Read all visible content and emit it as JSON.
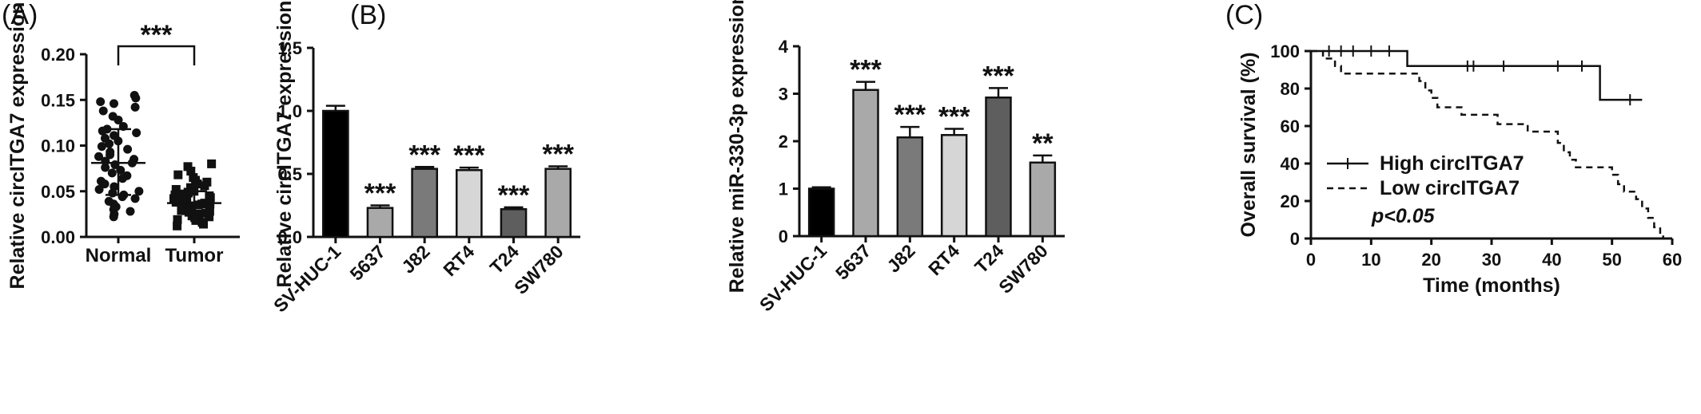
{
  "panels": {
    "a": "(A)",
    "b": "(B)",
    "c": "(C)"
  },
  "chart_data": [
    {
      "type": "scatter",
      "ylabel": "Relative circITGA7 expression",
      "ylim": [
        0,
        0.2
      ],
      "yticks": [
        "0.00",
        "0.05",
        "0.10",
        "0.15",
        "0.20"
      ],
      "categories": [
        "Normal",
        "Tumor"
      ],
      "significance": "***",
      "series": [
        {
          "name": "Normal",
          "mean": 0.081,
          "sd_low": 0.046,
          "sd_high": 0.118,
          "values": [
            0.155,
            0.152,
            0.148,
            0.146,
            0.142,
            0.138,
            0.132,
            0.128,
            0.121,
            0.118,
            0.116,
            0.114,
            0.111,
            0.108,
            0.105,
            0.102,
            0.099,
            0.096,
            0.093,
            0.09,
            0.088,
            0.085,
            0.083,
            0.081,
            0.079,
            0.076,
            0.073,
            0.07,
            0.067,
            0.064,
            0.061,
            0.058,
            0.055,
            0.052,
            0.05,
            0.048,
            0.046,
            0.044,
            0.042,
            0.039,
            0.036,
            0.033,
            0.03,
            0.028,
            0.025,
            0.022
          ]
        },
        {
          "name": "Tumor",
          "mean": 0.037,
          "sd_low": 0.025,
          "sd_high": 0.05,
          "values": [
            0.08,
            0.077,
            0.072,
            0.068,
            0.065,
            0.062,
            0.06,
            0.058,
            0.056,
            0.054,
            0.052,
            0.05,
            0.049,
            0.048,
            0.047,
            0.046,
            0.045,
            0.044,
            0.043,
            0.042,
            0.041,
            0.04,
            0.039,
            0.038,
            0.037,
            0.036,
            0.036,
            0.035,
            0.034,
            0.033,
            0.032,
            0.031,
            0.03,
            0.029,
            0.028,
            0.027,
            0.026,
            0.025,
            0.024,
            0.023,
            0.022,
            0.021,
            0.02,
            0.019,
            0.018,
            0.016,
            0.014,
            0.012
          ]
        }
      ]
    },
    {
      "type": "bar",
      "ylabel": "Relative circITGA7 expression",
      "ylim": [
        0,
        1.5
      ],
      "yticks": [
        "0.0",
        "0.5",
        "1.0",
        "1.5"
      ],
      "categories": [
        "SV-HUC-1",
        "5637",
        "J82",
        "RT4",
        "T24",
        "SW780"
      ],
      "values": [
        1.0,
        0.23,
        0.54,
        0.53,
        0.22,
        0.54
      ],
      "errors": [
        0.04,
        0.02,
        0.015,
        0.02,
        0.015,
        0.02
      ],
      "significance": [
        "",
        "***",
        "***",
        "***",
        "***",
        "***"
      ],
      "colors": [
        "#000000",
        "#a9a9a9",
        "#7a7a7a",
        "#d6d6d6",
        "#5e5e5e",
        "#a9a9a9"
      ]
    },
    {
      "type": "bar",
      "ylabel": "Relative miR-330-3p expression",
      "ylim": [
        0,
        4
      ],
      "yticks": [
        "0",
        "1",
        "2",
        "3",
        "4"
      ],
      "categories": [
        "SV-HUC-1",
        "5637",
        "J82",
        "RT4",
        "T24",
        "SW780"
      ],
      "values": [
        1.0,
        3.08,
        2.08,
        2.13,
        2.92,
        1.55
      ],
      "errors": [
        0.03,
        0.17,
        0.22,
        0.13,
        0.2,
        0.15
      ],
      "significance": [
        "",
        "***",
        "***",
        "***",
        "***",
        "**"
      ],
      "colors": [
        "#000000",
        "#a9a9a9",
        "#7a7a7a",
        "#d6d6d6",
        "#5e5e5e",
        "#a9a9a9"
      ]
    },
    {
      "type": "line",
      "xlabel": "Time (months)",
      "ylabel": "Overall survival (%)",
      "xlim": [
        0,
        60
      ],
      "ylim": [
        0,
        100
      ],
      "xticks": [
        "0",
        "10",
        "20",
        "30",
        "40",
        "50",
        "60"
      ],
      "yticks": [
        "0",
        "20",
        "40",
        "60",
        "80",
        "100"
      ],
      "annotation": "p<0.05",
      "series": [
        {
          "name": "High circITGA7",
          "style": "solid",
          "steps": [
            [
              0,
              100
            ],
            [
              16,
              92
            ],
            [
              48,
              74
            ],
            [
              55,
              74
            ]
          ],
          "censors": [
            [
              3,
              100
            ],
            [
              5,
              100
            ],
            [
              7,
              100
            ],
            [
              10,
              100
            ],
            [
              13,
              100
            ],
            [
              26,
              92
            ],
            [
              27,
              92
            ],
            [
              32,
              92
            ],
            [
              41,
              92
            ],
            [
              45,
              92
            ],
            [
              53,
              74
            ]
          ]
        },
        {
          "name": "Low circITGA7",
          "style": "dashed",
          "steps": [
            [
              0,
              100
            ],
            [
              2,
              96
            ],
            [
              4,
              92
            ],
            [
              5,
              88
            ],
            [
              18,
              84
            ],
            [
              19,
              79
            ],
            [
              20,
              75
            ],
            [
              21,
              70
            ],
            [
              25,
              66
            ],
            [
              31,
              61
            ],
            [
              36,
              57
            ],
            [
              41,
              51
            ],
            [
              42,
              46
            ],
            [
              43,
              42
            ],
            [
              44,
              38
            ],
            [
              50,
              34
            ],
            [
              51,
              29
            ],
            [
              52,
              25
            ],
            [
              54,
              21
            ],
            [
              55,
              16
            ],
            [
              56,
              11
            ],
            [
              57,
              6
            ],
            [
              58,
              2
            ],
            [
              58.5,
              0
            ]
          ],
          "censors": []
        }
      ]
    }
  ]
}
